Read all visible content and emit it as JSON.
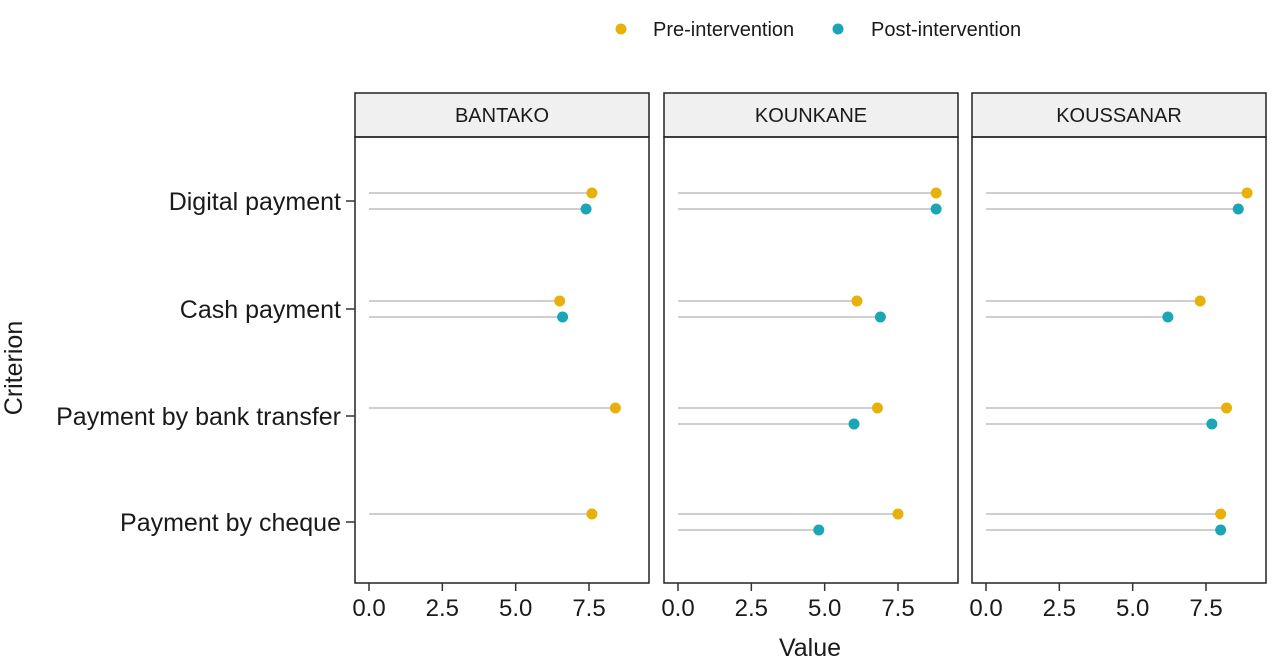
{
  "chart_data": {
    "type": "scatter",
    "subtype": "faceted-lollipop",
    "legend": {
      "position": "top",
      "entries": [
        {
          "name": "Pre-intervention",
          "color": "#E7B10A"
        },
        {
          "name": "Post-intervention",
          "color": "#1BA6B5"
        }
      ]
    },
    "xlabel": "Value",
    "ylabel": "Criterion",
    "xlim": [
      0,
      9
    ],
    "x_ticks": [
      "0.0",
      "2.5",
      "5.0",
      "7.5"
    ],
    "x_tick_values": [
      0,
      2.5,
      5,
      7.5
    ],
    "categories": [
      "Digital payment",
      "Cash payment",
      "Payment by bank transfer",
      "Payment by cheque"
    ],
    "grid": false,
    "facets": [
      {
        "title": "BANTAKO",
        "series": [
          {
            "name": "Pre-intervention",
            "values": [
              7.6,
              6.5,
              8.4,
              7.6
            ]
          },
          {
            "name": "Post-intervention",
            "values": [
              7.4,
              6.6,
              null,
              null
            ]
          }
        ]
      },
      {
        "title": "KOUNKANE",
        "series": [
          {
            "name": "Pre-intervention",
            "values": [
              8.8,
              6.1,
              6.8,
              7.5
            ]
          },
          {
            "name": "Post-intervention",
            "values": [
              8.8,
              6.9,
              6.0,
              4.8
            ]
          }
        ]
      },
      {
        "title": "KOUSSANAR",
        "series": [
          {
            "name": "Pre-intervention",
            "values": [
              8.9,
              7.3,
              8.2,
              8.0
            ]
          },
          {
            "name": "Post-intervention",
            "values": [
              8.6,
              6.2,
              7.7,
              8.0
            ]
          }
        ]
      }
    ]
  }
}
